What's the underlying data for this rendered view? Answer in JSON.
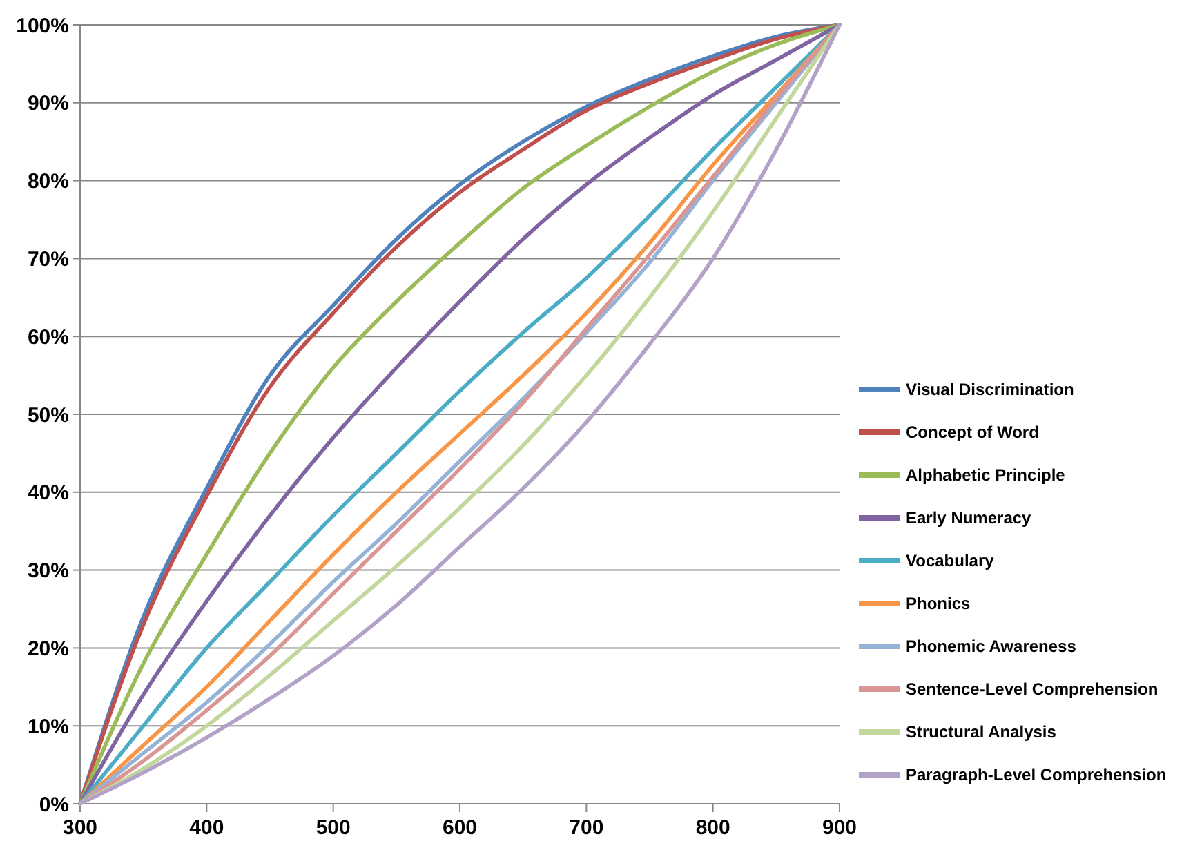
{
  "chart_data": {
    "type": "line",
    "x": [
      300,
      350,
      400,
      450,
      500,
      550,
      600,
      650,
      700,
      750,
      800,
      850,
      900
    ],
    "series": [
      {
        "name": "Visual Discrimination",
        "color": "#4f81bd",
        "values": [
          0,
          24,
          40.5,
          55,
          64,
          72.5,
          79.5,
          85,
          89.5,
          93,
          96,
          98.5,
          100
        ]
      },
      {
        "name": "Concept of Word",
        "color": "#c0504d",
        "values": [
          0,
          23,
          39.5,
          53.5,
          63,
          71.5,
          78.5,
          84,
          89,
          92.5,
          95.5,
          98.2,
          100
        ]
      },
      {
        "name": "Alphabetic Principle",
        "color": "#9bbb59",
        "values": [
          0,
          18,
          32,
          45,
          56,
          64.5,
          72,
          79,
          84.5,
          89.5,
          94,
          97.5,
          100
        ]
      },
      {
        "name": "Early Numeracy",
        "color": "#8064a2",
        "values": [
          0,
          14,
          26,
          37,
          47,
          56,
          64.5,
          72.5,
          79.5,
          85.5,
          91,
          95.5,
          100
        ]
      },
      {
        "name": "Vocabulary",
        "color": "#4bacc6",
        "values": [
          0,
          10,
          20,
          28.5,
          37,
          45,
          53,
          60.5,
          67.5,
          75.5,
          84,
          92,
          100
        ]
      },
      {
        "name": "Phonics",
        "color": "#f79646",
        "values": [
          0,
          7.5,
          15,
          23.5,
          32,
          40,
          47.5,
          55,
          63,
          72,
          82,
          91,
          100
        ]
      },
      {
        "name": "Phonemic Awareness",
        "color": "#95b3d7",
        "values": [
          0,
          6.5,
          13,
          20.5,
          28.5,
          36,
          44,
          52,
          60.5,
          69.5,
          80,
          90,
          100
        ]
      },
      {
        "name": "Sentence-Level Comprehension",
        "color": "#d99694",
        "values": [
          0,
          5.5,
          12,
          19,
          27,
          35,
          43,
          51.5,
          61,
          70.5,
          80.5,
          90.5,
          100
        ]
      },
      {
        "name": "Structural Analysis",
        "color": "#c3d69b",
        "values": [
          0,
          4.5,
          10,
          16.5,
          23.5,
          30.5,
          38,
          46,
          55,
          65,
          76,
          88,
          100
        ]
      },
      {
        "name": "Paragraph-Level Comprehension",
        "color": "#b3a2c7",
        "values": [
          0,
          4,
          8.5,
          13.5,
          19,
          25.5,
          33,
          40.5,
          49,
          59,
          70,
          84,
          100
        ]
      }
    ],
    "xlim": [
      300,
      900
    ],
    "xticks": [
      300,
      400,
      500,
      600,
      700,
      800,
      900
    ],
    "ylim": [
      0,
      100
    ],
    "yticks": [
      {
        "value": 0,
        "label": "0%"
      },
      {
        "value": 10,
        "label": "10%"
      },
      {
        "value": 20,
        "label": "20%"
      },
      {
        "value": 30,
        "label": "30%"
      },
      {
        "value": 40,
        "label": "40%"
      },
      {
        "value": 50,
        "label": "50%"
      },
      {
        "value": 60,
        "label": "60%"
      },
      {
        "value": 70,
        "label": "70%"
      },
      {
        "value": 80,
        "label": "80%"
      },
      {
        "value": 90,
        "label": "90%"
      },
      {
        "value": 100,
        "label": "100%"
      }
    ],
    "grid": "y",
    "legend": "right",
    "line_style": "solid",
    "marker": "none"
  }
}
